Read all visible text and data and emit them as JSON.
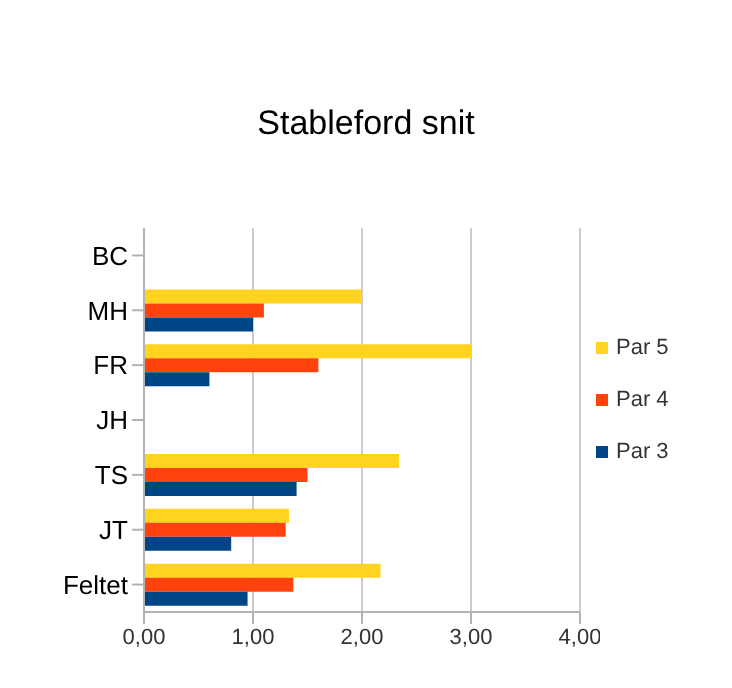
{
  "chart_data": {
    "type": "bar",
    "orientation": "horizontal",
    "title": "Stableford snit",
    "categories": [
      "BC",
      "MH",
      "FR",
      "JH",
      "TS",
      "JT",
      "Feltet"
    ],
    "series": [
      {
        "name": "Par 5",
        "color": "#ffd320",
        "values": [
          null,
          2.0,
          3.0,
          null,
          2.34,
          1.33,
          2.17
        ]
      },
      {
        "name": "Par 4",
        "color": "#ff420e",
        "values": [
          null,
          1.1,
          1.6,
          null,
          1.5,
          1.3,
          1.37
        ]
      },
      {
        "name": "Par 3",
        "color": "#004586",
        "values": [
          null,
          1.0,
          0.6,
          null,
          1.4,
          0.8,
          0.95
        ]
      }
    ],
    "xlim": [
      0,
      4
    ],
    "xticks": [
      {
        "value": 0,
        "label": "0,00"
      },
      {
        "value": 1,
        "label": "1,00"
      },
      {
        "value": 2,
        "label": "2,00"
      },
      {
        "value": 3,
        "label": "3,00"
      },
      {
        "value": 4,
        "label": "4,00"
      }
    ],
    "grid": "x",
    "legend": "right"
  }
}
